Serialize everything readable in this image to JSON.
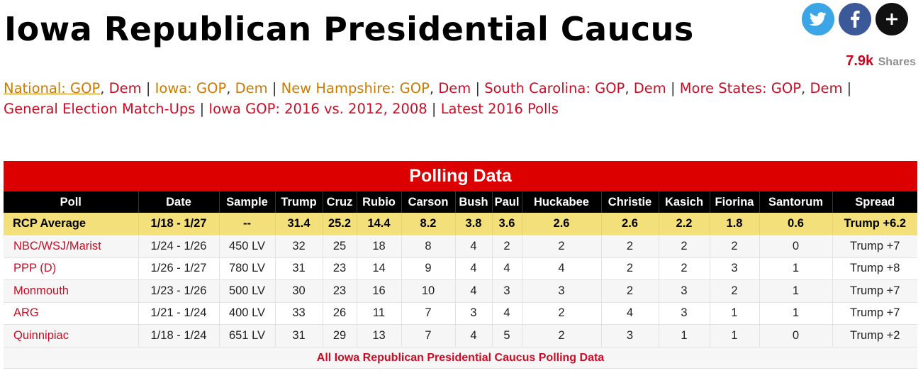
{
  "page": {
    "title": "Iowa Republican Presidential Caucus"
  },
  "share": {
    "icons": [
      "twitter-icon",
      "facebook-icon",
      "plus-icon"
    ],
    "count": "7.9k",
    "label": "Shares"
  },
  "nav": {
    "line1": [
      {
        "text": "National: GOP",
        "color": "orange",
        "active": true
      },
      {
        "text": ", ",
        "sep": true
      },
      {
        "text": "Dem",
        "color": "red"
      },
      {
        "text": " | ",
        "sep": true
      },
      {
        "text": "Iowa: GOP",
        "color": "orange"
      },
      {
        "text": ", ",
        "sep": true
      },
      {
        "text": "Dem",
        "color": "orange"
      },
      {
        "text": " | ",
        "sep": true
      },
      {
        "text": "New Hampshire: GOP",
        "color": "orange"
      },
      {
        "text": ", ",
        "sep": true
      },
      {
        "text": "Dem",
        "color": "red"
      },
      {
        "text": " | ",
        "sep": true
      },
      {
        "text": "South Carolina: GOP",
        "color": "red"
      },
      {
        "text": ", ",
        "sep": true
      },
      {
        "text": "Dem",
        "color": "red"
      },
      {
        "text": " | ",
        "sep": true
      },
      {
        "text": "More States: GOP",
        "color": "red"
      },
      {
        "text": ", ",
        "sep": true
      },
      {
        "text": "Dem",
        "color": "red"
      },
      {
        "text": " |",
        "sep": true
      }
    ],
    "line2": [
      {
        "text": "General Election Match-Ups",
        "color": "red"
      },
      {
        "text": " | ",
        "sep": true
      },
      {
        "text": "Iowa GOP: 2016 vs. 2012, 2008",
        "color": "red"
      },
      {
        "text": " | ",
        "sep": true
      },
      {
        "text": "Latest 2016 Polls",
        "color": "red"
      }
    ]
  },
  "polling": {
    "header": "Polling Data",
    "columns": [
      "Poll",
      "Date",
      "Sample",
      "Trump",
      "Cruz",
      "Rubio",
      "Carson",
      "Bush",
      "Paul",
      "Huckabee",
      "Christie",
      "Kasich",
      "Fiorina",
      "Santorum",
      "Spread"
    ],
    "average": [
      "RCP Average",
      "1/18 - 1/27",
      "--",
      "31.4",
      "25.2",
      "14.4",
      "8.2",
      "3.8",
      "3.6",
      "2.6",
      "2.6",
      "2.2",
      "1.8",
      "0.6",
      "Trump +6.2"
    ],
    "rows": [
      [
        "NBC/WSJ/Marist",
        "1/24 - 1/26",
        "450 LV",
        "32",
        "25",
        "18",
        "8",
        "4",
        "2",
        "2",
        "2",
        "2",
        "2",
        "0",
        "Trump +7"
      ],
      [
        "PPP (D)",
        "1/26 - 1/27",
        "780 LV",
        "31",
        "23",
        "14",
        "9",
        "4",
        "4",
        "4",
        "2",
        "2",
        "3",
        "1",
        "Trump +8"
      ],
      [
        "Monmouth",
        "1/23 - 1/26",
        "500 LV",
        "30",
        "23",
        "16",
        "10",
        "4",
        "3",
        "3",
        "2",
        "3",
        "2",
        "1",
        "Trump +7"
      ],
      [
        "ARG",
        "1/21 - 1/24",
        "400 LV",
        "33",
        "26",
        "11",
        "7",
        "3",
        "4",
        "2",
        "4",
        "3",
        "1",
        "1",
        "Trump +7"
      ],
      [
        "Quinnipiac",
        "1/18 - 1/24",
        "651 LV",
        "31",
        "29",
        "13",
        "7",
        "4",
        "5",
        "2",
        "3",
        "1",
        "1",
        "0",
        "Trump +2"
      ]
    ],
    "footer_link": "All Iowa Republican Presidential Caucus Polling Data"
  }
}
